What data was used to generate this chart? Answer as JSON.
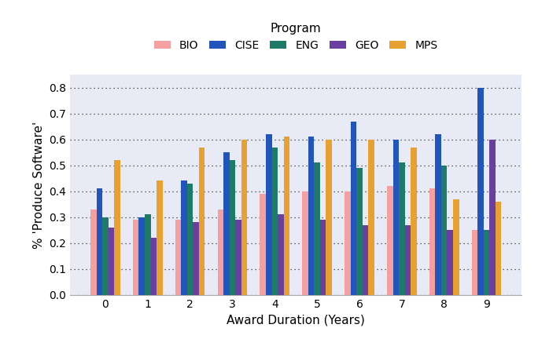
{
  "title": "Program",
  "xlabel": "Award Duration (Years)",
  "ylabel": "% 'Produce Software'",
  "categories": [
    0,
    1,
    2,
    3,
    4,
    5,
    6,
    7,
    8,
    9
  ],
  "programs": [
    "BIO",
    "CISE",
    "ENG",
    "GEO",
    "MPS"
  ],
  "colors": {
    "BIO": "#F4A0A0",
    "CISE": "#2255BB",
    "ENG": "#1E7B6A",
    "GEO": "#6B3FA0",
    "MPS": "#E8A030"
  },
  "data": {
    "BIO": [
      0.33,
      0.29,
      0.29,
      0.33,
      0.39,
      0.4,
      0.4,
      0.42,
      0.41,
      0.25
    ],
    "CISE": [
      0.41,
      0.3,
      0.44,
      0.55,
      0.62,
      0.61,
      0.67,
      0.6,
      0.62,
      0.8
    ],
    "ENG": [
      0.3,
      0.31,
      0.43,
      0.52,
      0.57,
      0.51,
      0.49,
      0.51,
      0.5,
      0.25
    ],
    "GEO": [
      0.26,
      0.22,
      0.28,
      0.29,
      0.31,
      0.29,
      0.27,
      0.27,
      0.25,
      0.6
    ],
    "MPS": [
      0.52,
      0.44,
      0.57,
      0.6,
      0.61,
      0.6,
      0.6,
      0.57,
      0.37,
      0.36
    ]
  },
  "ylim": [
    0.0,
    0.85
  ],
  "yticks": [
    0.0,
    0.1,
    0.2,
    0.3,
    0.4,
    0.5,
    0.6,
    0.7,
    0.8
  ],
  "background_color": "#E8EAF6",
  "bar_width": 0.14
}
